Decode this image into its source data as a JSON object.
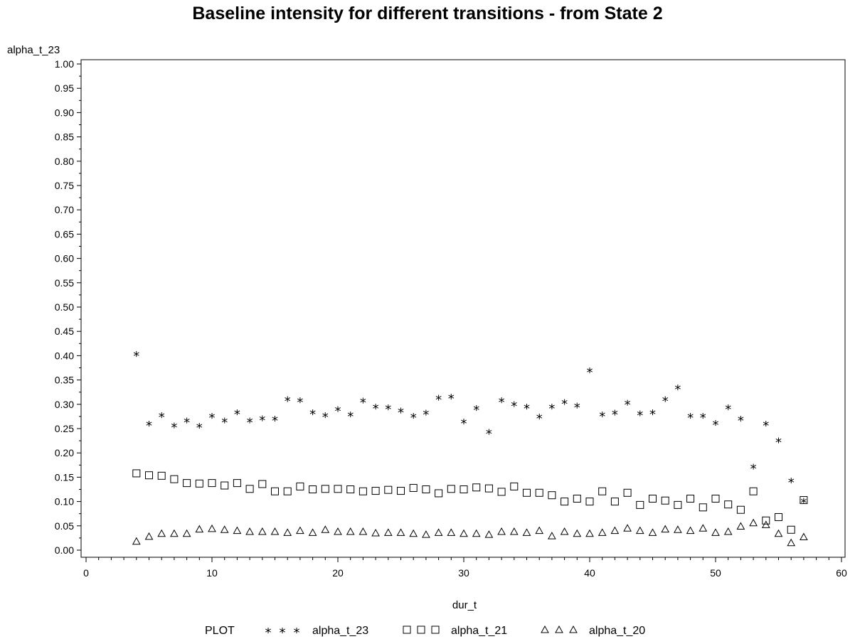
{
  "chart_data": {
    "type": "scatter",
    "title": "Baseline intensity for different transitions - from State 2",
    "xlabel": "dur_t",
    "ylabel": "alpha_t_23",
    "xlim": [
      0,
      60
    ],
    "ylim": [
      0,
      1
    ],
    "x_ticks": [
      "0",
      "10",
      "20",
      "30",
      "40",
      "50",
      "60"
    ],
    "y_ticks": [
      "0.00",
      "0.05",
      "0.10",
      "0.15",
      "0.20",
      "0.25",
      "0.30",
      "0.35",
      "0.40",
      "0.45",
      "0.50",
      "0.55",
      "0.60",
      "0.65",
      "0.70",
      "0.75",
      "0.80",
      "0.85",
      "0.90",
      "0.95",
      "1.00"
    ],
    "grid": false,
    "legend": {
      "position": "bottom",
      "title": "PLOT",
      "entries": [
        {
          "symbol": "*",
          "label": "alpha_t_23"
        },
        {
          "symbol": "square",
          "label": "alpha_t_21"
        },
        {
          "symbol": "triangle",
          "label": "alpha_t_20"
        }
      ]
    },
    "x": [
      4,
      5,
      6,
      7,
      8,
      9,
      10,
      11,
      12,
      13,
      14,
      15,
      16,
      17,
      18,
      19,
      20,
      21,
      22,
      23,
      24,
      25,
      26,
      27,
      28,
      29,
      30,
      31,
      32,
      33,
      34,
      35,
      36,
      37,
      38,
      39,
      40,
      41,
      42,
      43,
      44,
      45,
      46,
      47,
      48,
      49,
      50,
      51,
      52,
      53,
      54,
      55,
      56,
      57
    ],
    "series": [
      {
        "name": "alpha_t_23",
        "marker": "star",
        "values": [
          0.405,
          0.262,
          0.279,
          0.258,
          0.268,
          0.257,
          0.278,
          0.268,
          0.285,
          0.268,
          0.273,
          0.272,
          0.312,
          0.31,
          0.285,
          0.279,
          0.292,
          0.281,
          0.309,
          0.297,
          0.295,
          0.289,
          0.278,
          0.284,
          0.315,
          0.317,
          0.266,
          0.294,
          0.245,
          0.31,
          0.302,
          0.297,
          0.276,
          0.297,
          0.306,
          0.299,
          0.371,
          0.281,
          0.284,
          0.305,
          0.283,
          0.285,
          0.312,
          0.336,
          0.278,
          0.278,
          0.263,
          0.295,
          0.272,
          0.173,
          0.262,
          0.227,
          0.145,
          0.103
        ]
      },
      {
        "name": "alpha_t_21",
        "marker": "square",
        "values": [
          0.158,
          0.154,
          0.153,
          0.146,
          0.138,
          0.137,
          0.138,
          0.133,
          0.138,
          0.126,
          0.136,
          0.121,
          0.121,
          0.131,
          0.125,
          0.126,
          0.126,
          0.125,
          0.121,
          0.122,
          0.124,
          0.122,
          0.128,
          0.125,
          0.117,
          0.126,
          0.125,
          0.129,
          0.127,
          0.12,
          0.131,
          0.118,
          0.118,
          0.113,
          0.1,
          0.106,
          0.1,
          0.121,
          0.1,
          0.118,
          0.093,
          0.106,
          0.102,
          0.093,
          0.106,
          0.088,
          0.106,
          0.094,
          0.083,
          0.121,
          0.061,
          0.068,
          0.042,
          0.103
        ]
      },
      {
        "name": "alpha_t_20",
        "marker": "triangle",
        "values": [
          0.018,
          0.028,
          0.034,
          0.034,
          0.034,
          0.043,
          0.044,
          0.042,
          0.04,
          0.038,
          0.038,
          0.038,
          0.036,
          0.04,
          0.036,
          0.042,
          0.038,
          0.038,
          0.038,
          0.035,
          0.036,
          0.036,
          0.034,
          0.032,
          0.036,
          0.036,
          0.034,
          0.034,
          0.032,
          0.038,
          0.038,
          0.036,
          0.04,
          0.029,
          0.038,
          0.034,
          0.034,
          0.036,
          0.04,
          0.045,
          0.04,
          0.036,
          0.043,
          0.042,
          0.04,
          0.045,
          0.036,
          0.038,
          0.049,
          0.056,
          0.052,
          0.034,
          0.015,
          0.027
        ]
      }
    ]
  }
}
